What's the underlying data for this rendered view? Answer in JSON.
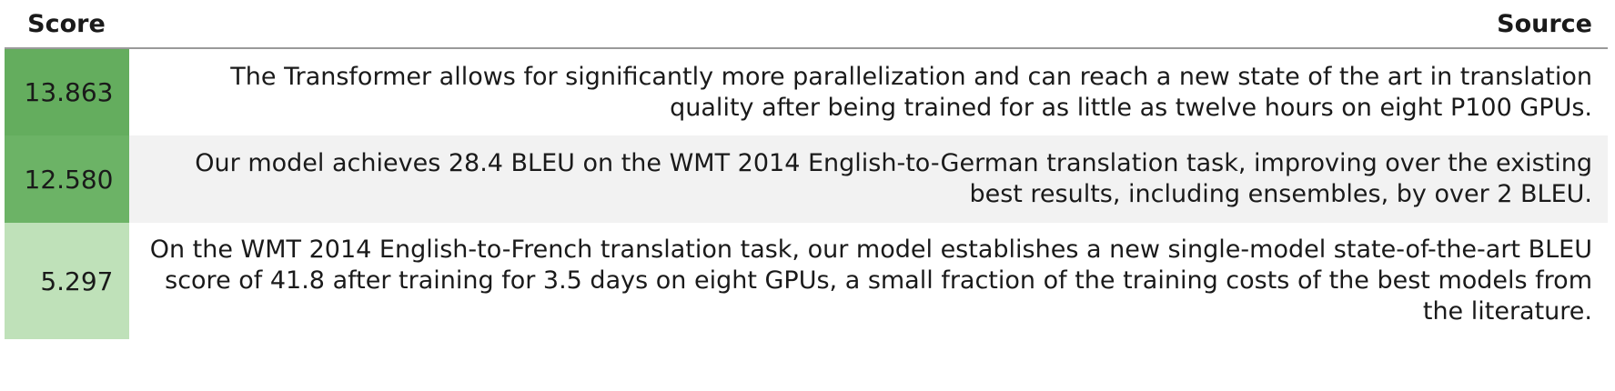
{
  "table": {
    "headers": {
      "score": "Score",
      "source": "Source"
    },
    "rows": [
      {
        "score": "13.863",
        "score_color": "#64ad5e",
        "source": "The Transformer allows for significantly more parallelization and can reach a new state of the art in translation quality after being trained for as little as twelve hours on eight P100 GPUs."
      },
      {
        "score": "12.580",
        "score_color": "#6cb366",
        "source": "Our model achieves 28.4 BLEU on the WMT 2014 English-to-German translation task, improving over the existing best results, including ensembles, by over 2 BLEU."
      },
      {
        "score": "5.297",
        "score_color": "#bfe1b9",
        "source": "On the WMT 2014 English-to-French translation task, our model establishes a new single-model state-of-the-art BLEU score of 41.8 after training for 3.5 days on eight GPUs, a small fraction of the training costs of the best models from the literature."
      }
    ]
  }
}
